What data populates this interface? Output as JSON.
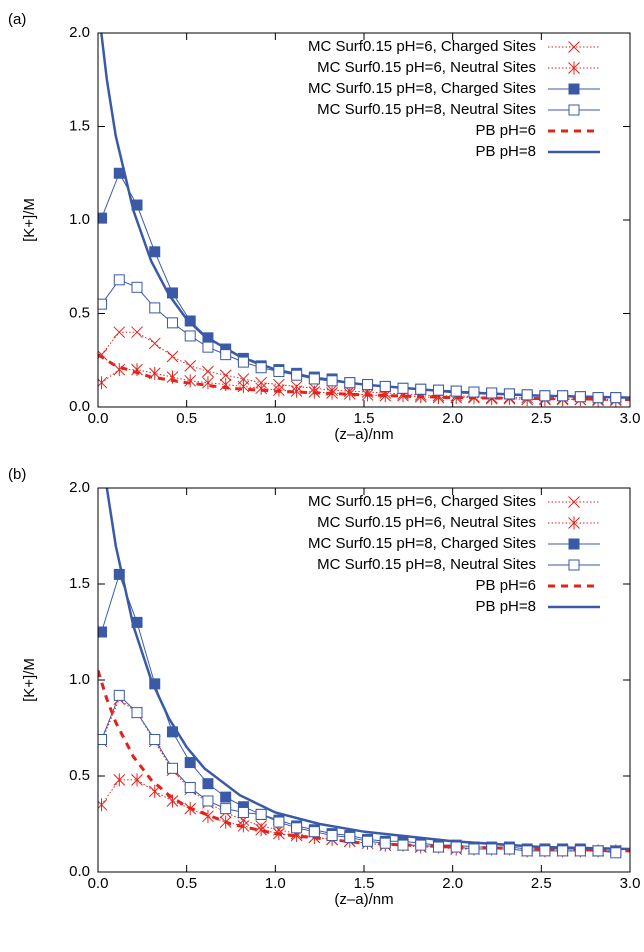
{
  "chart_data": [
    {
      "type": "line",
      "panel_label": "(a)",
      "xlabel": "(z–a)/nm",
      "ylabel": "[K+]/M",
      "xlim": [
        0,
        3
      ],
      "ylim": [
        0,
        2
      ],
      "xticks": [
        {
          "value": 0,
          "label": "0.0"
        },
        0.5,
        {
          "value": 1,
          "label": "1.0"
        },
        1.5,
        {
          "value": 2,
          "label": "2.0"
        },
        2.5,
        {
          "value": 3,
          "label": "3.0"
        }
      ],
      "yticks": [
        {
          "value": 0,
          "label": "0.0"
        },
        0.5,
        {
          "value": 1,
          "label": "1.0"
        },
        1.5,
        {
          "value": 2,
          "label": "2.0"
        }
      ],
      "legend": "top-right",
      "x": [
        0.02,
        0.12,
        0.22,
        0.32,
        0.42,
        0.52,
        0.62,
        0.72,
        0.82,
        0.92,
        1.02,
        1.12,
        1.22,
        1.32,
        1.42,
        1.52,
        1.62,
        1.72,
        1.82,
        1.92,
        2.02,
        2.12,
        2.22,
        2.32,
        2.42,
        2.52,
        2.62,
        2.72,
        2.82,
        2.92
      ],
      "series": [
        {
          "name": "MC Surf0.15 pH=6, Charged Sites",
          "color": "#e3231c",
          "marker": "x",
          "dash": "dotted",
          "values": [
            0.28,
            0.4,
            0.4,
            0.34,
            0.27,
            0.22,
            0.19,
            0.17,
            0.15,
            0.13,
            0.12,
            0.11,
            0.1,
            0.09,
            0.085,
            0.08,
            0.075,
            0.07,
            0.065,
            0.06,
            0.06,
            0.055,
            0.05,
            0.05,
            0.05,
            0.045,
            0.045,
            0.04,
            0.04,
            0.04
          ]
        },
        {
          "name": "MC Surf0.15 pH=6, Neutral Sites",
          "color": "#e3231c",
          "marker": "asterisk",
          "dash": "dotted",
          "values": [
            0.13,
            0.2,
            0.2,
            0.18,
            0.16,
            0.14,
            0.13,
            0.12,
            0.11,
            0.1,
            0.09,
            0.085,
            0.08,
            0.075,
            0.07,
            0.065,
            0.06,
            0.06,
            0.055,
            0.05,
            0.05,
            0.05,
            0.045,
            0.045,
            0.04,
            0.04,
            0.04,
            0.04,
            0.035,
            0.035
          ]
        },
        {
          "name": "MC Surf0.15 pH=8, Charged Sites",
          "color": "#3a5aa8",
          "marker": "filled-square",
          "dash": "solid",
          "values": [
            1.01,
            1.25,
            1.08,
            0.83,
            0.61,
            0.46,
            0.37,
            0.31,
            0.26,
            0.22,
            0.2,
            0.18,
            0.16,
            0.15,
            0.13,
            0.12,
            0.11,
            0.1,
            0.095,
            0.09,
            0.085,
            0.08,
            0.075,
            0.07,
            0.065,
            0.06,
            0.06,
            0.055,
            0.05,
            0.05
          ]
        },
        {
          "name": "MC Surf0.15 pH=8, Neutral Sites",
          "color": "#3a5aa8",
          "marker": "open-square",
          "dash": "solid",
          "values": [
            0.55,
            0.68,
            0.64,
            0.53,
            0.45,
            0.38,
            0.32,
            0.28,
            0.24,
            0.21,
            0.19,
            0.17,
            0.15,
            0.14,
            0.13,
            0.12,
            0.11,
            0.1,
            0.095,
            0.09,
            0.085,
            0.08,
            0.075,
            0.07,
            0.065,
            0.06,
            0.06,
            0.055,
            0.05,
            0.05
          ]
        },
        {
          "name": "PB pH=6",
          "color": "#e3231c",
          "dash": "dashed",
          "x": [
            0,
            0.1,
            0.2,
            0.3,
            0.5,
            0.75,
            1,
            1.5,
            2,
            2.5,
            3
          ],
          "values": [
            0.28,
            0.22,
            0.19,
            0.16,
            0.13,
            0.1,
            0.085,
            0.065,
            0.05,
            0.045,
            0.04
          ]
        },
        {
          "name": "PB pH=8",
          "color": "#3a5aa8",
          "dash": "thick",
          "x": [
            0,
            0.05,
            0.1,
            0.2,
            0.3,
            0.4,
            0.5,
            0.6,
            0.8,
            1,
            1.25,
            1.5,
            2,
            2.5,
            3
          ],
          "values": [
            2.15,
            1.75,
            1.45,
            1.05,
            0.78,
            0.6,
            0.47,
            0.38,
            0.27,
            0.2,
            0.15,
            0.12,
            0.08,
            0.06,
            0.05
          ]
        }
      ]
    },
    {
      "type": "line",
      "panel_label": "(b)",
      "xlabel": "(z–a)/nm",
      "ylabel": "[K+]/M",
      "xlim": [
        0,
        3
      ],
      "ylim": [
        0,
        2
      ],
      "xticks": [
        {
          "value": 0,
          "label": "0.0"
        },
        0.5,
        {
          "value": 1,
          "label": "1.0"
        },
        1.5,
        {
          "value": 2,
          "label": "2.0"
        },
        2.5,
        {
          "value": 3,
          "label": "3.0"
        }
      ],
      "yticks": [
        {
          "value": 0,
          "label": "0.0"
        },
        0.5,
        {
          "value": 1,
          "label": "1.0"
        },
        1.5,
        {
          "value": 2,
          "label": "2.0"
        }
      ],
      "legend": "top-right",
      "x": [
        0.02,
        0.12,
        0.22,
        0.32,
        0.42,
        0.52,
        0.62,
        0.72,
        0.82,
        0.92,
        1.02,
        1.12,
        1.22,
        1.32,
        1.42,
        1.52,
        1.62,
        1.72,
        1.82,
        1.92,
        2.02,
        2.12,
        2.22,
        2.32,
        2.42,
        2.52,
        2.62,
        2.72,
        2.82,
        2.92
      ],
      "series": [
        {
          "name": "MC Surf0.15 pH=6, Charged Sites",
          "color": "#e3231c",
          "marker": "x",
          "dash": "dotted",
          "values": [
            0.68,
            0.9,
            0.83,
            0.68,
            0.53,
            0.43,
            0.36,
            0.31,
            0.27,
            0.24,
            0.22,
            0.2,
            0.18,
            0.17,
            0.16,
            0.15,
            0.14,
            0.14,
            0.13,
            0.13,
            0.12,
            0.12,
            0.12,
            0.12,
            0.11,
            0.11,
            0.11,
            0.11,
            0.11,
            0.11
          ]
        },
        {
          "name": "MC Surf0.15 pH=6, Neutral Sites",
          "color": "#e3231c",
          "marker": "asterisk",
          "dash": "dotted",
          "values": [
            0.35,
            0.48,
            0.48,
            0.42,
            0.37,
            0.33,
            0.29,
            0.26,
            0.24,
            0.22,
            0.2,
            0.19,
            0.18,
            0.17,
            0.16,
            0.15,
            0.14,
            0.14,
            0.13,
            0.13,
            0.12,
            0.12,
            0.12,
            0.12,
            0.11,
            0.11,
            0.11,
            0.11,
            0.11,
            0.11
          ]
        },
        {
          "name": "MC Surf0.15 pH=8, Charged Sites",
          "color": "#3a5aa8",
          "marker": "filled-square",
          "dash": "solid",
          "values": [
            1.25,
            1.55,
            1.3,
            0.98,
            0.73,
            0.57,
            0.46,
            0.39,
            0.34,
            0.3,
            0.27,
            0.24,
            0.22,
            0.2,
            0.19,
            0.17,
            0.16,
            0.16,
            0.15,
            0.14,
            0.14,
            0.13,
            0.13,
            0.13,
            0.12,
            0.12,
            0.12,
            0.12,
            0.11,
            0.11
          ]
        },
        {
          "name": "MC Surf0.15 pH=8, Neutral Sites",
          "color": "#3a5aa8",
          "marker": "open-square",
          "dash": "solid",
          "values": [
            0.69,
            0.92,
            0.83,
            0.69,
            0.54,
            0.44,
            0.37,
            0.33,
            0.31,
            0.3,
            0.26,
            0.23,
            0.21,
            0.19,
            0.18,
            0.16,
            0.15,
            0.14,
            0.14,
            0.13,
            0.13,
            0.12,
            0.12,
            0.12,
            0.11,
            0.11,
            0.11,
            0.11,
            0.11,
            0.1
          ]
        },
        {
          "name": "PB pH=6",
          "color": "#e3231c",
          "dash": "dashed",
          "x": [
            0,
            0.05,
            0.1,
            0.2,
            0.3,
            0.4,
            0.5,
            0.75,
            1,
            1.5,
            2,
            2.5,
            3
          ],
          "values": [
            1.05,
            0.9,
            0.78,
            0.6,
            0.48,
            0.4,
            0.34,
            0.25,
            0.2,
            0.15,
            0.13,
            0.12,
            0.11
          ]
        },
        {
          "name": "PB pH=8",
          "color": "#3a5aa8",
          "dash": "thick",
          "x": [
            0,
            0.05,
            0.1,
            0.2,
            0.3,
            0.4,
            0.5,
            0.6,
            0.8,
            1,
            1.25,
            1.5,
            2,
            2.5,
            3
          ],
          "values": [
            2.3,
            2.0,
            1.7,
            1.28,
            1.0,
            0.8,
            0.65,
            0.54,
            0.4,
            0.31,
            0.25,
            0.21,
            0.16,
            0.13,
            0.12
          ]
        }
      ]
    }
  ]
}
